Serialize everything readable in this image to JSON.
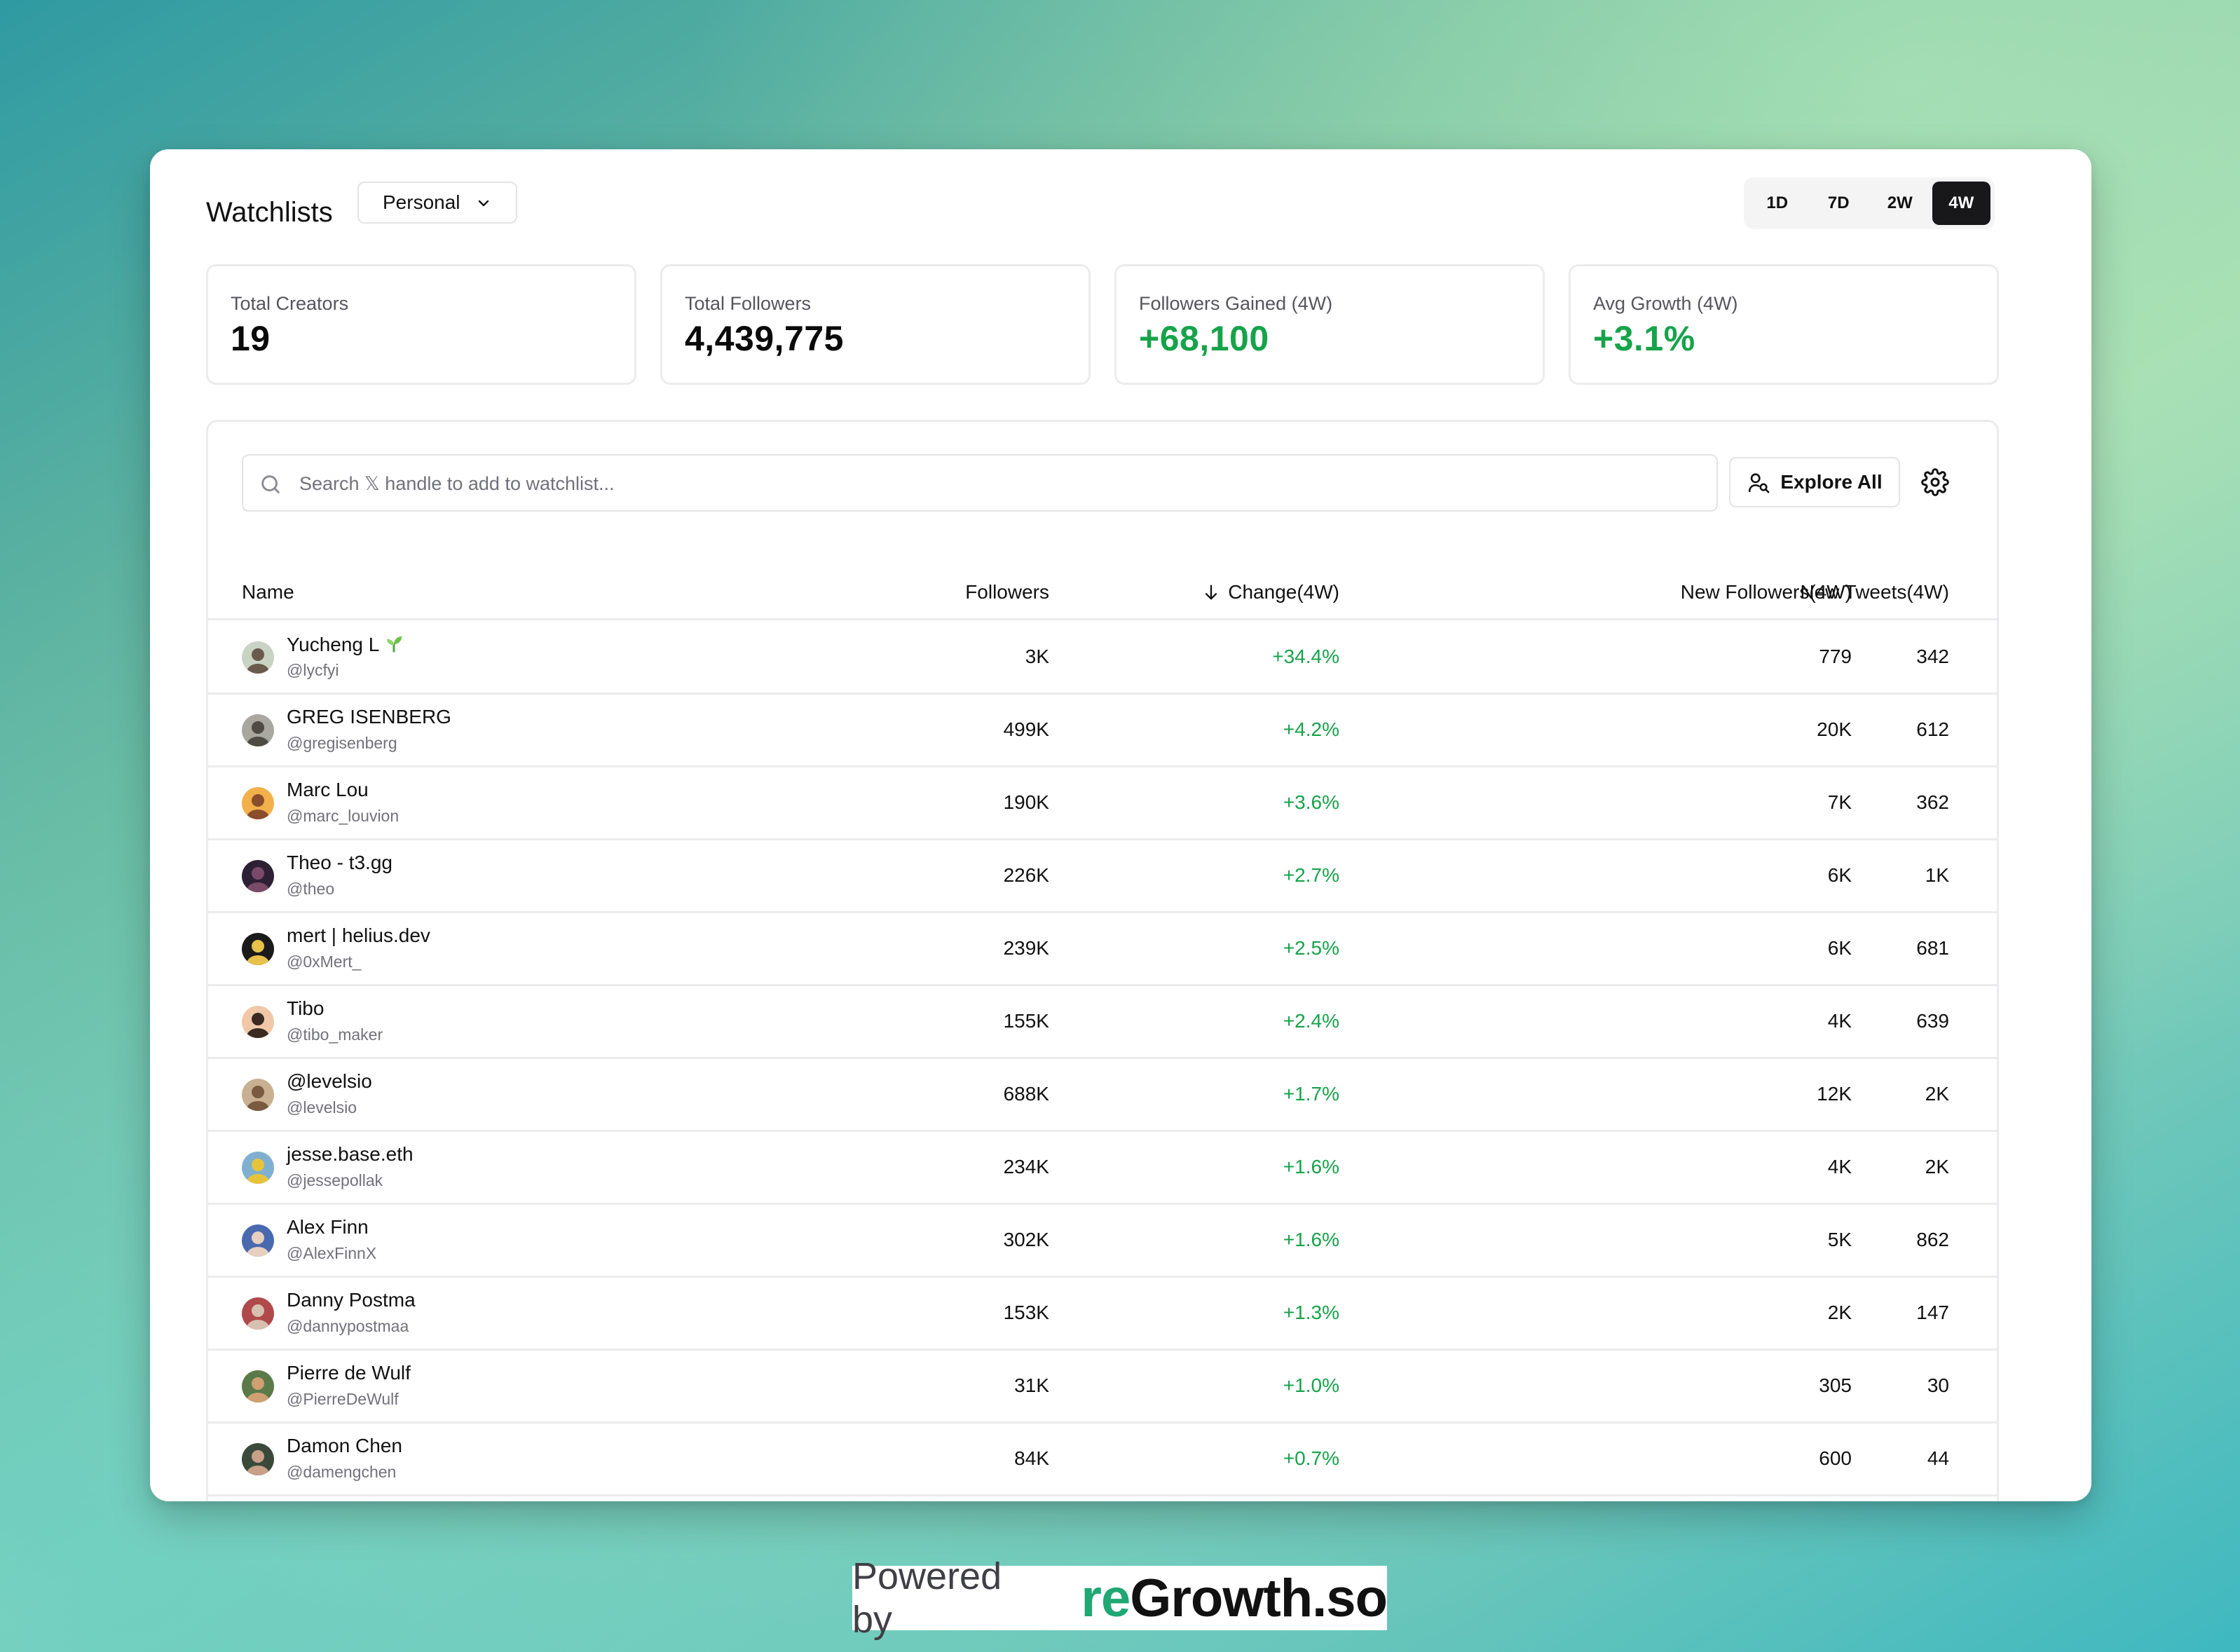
{
  "header": {
    "title": "Watchlists",
    "list_select": "Personal"
  },
  "ranges": [
    {
      "label": "1D",
      "active": false
    },
    {
      "label": "7D",
      "active": false
    },
    {
      "label": "2W",
      "active": false
    },
    {
      "label": "4W",
      "active": true
    }
  ],
  "stats": [
    {
      "label": "Total Creators",
      "value": "19"
    },
    {
      "label": "Total Followers",
      "value": "4,439,775"
    },
    {
      "label": "Followers Gained (4W)",
      "value": "+68,100"
    },
    {
      "label": "Avg Growth (4W)",
      "value": "+3.1%"
    }
  ],
  "search": {
    "placeholder": "Search 𝕏 handle to add to watchlist...",
    "value": ""
  },
  "explore_label": "Explore All",
  "table": {
    "columns": {
      "name": "Name",
      "followers": "Followers",
      "change": "Change(4W)",
      "new_followers": "New Followers(4W)",
      "new_tweets": "New Tweets(4W)"
    },
    "rows": [
      {
        "name": "Yucheng L",
        "handle": "@lycfyi",
        "followers": "3K",
        "change": "+34.4%",
        "new_followers": "779",
        "new_tweets": "342"
      },
      {
        "name": "GREG ISENBERG",
        "handle": "@gregisenberg",
        "followers": "499K",
        "change": "+4.2%",
        "new_followers": "20K",
        "new_tweets": "612"
      },
      {
        "name": "Marc Lou",
        "handle": "@marc_louvion",
        "followers": "190K",
        "change": "+3.6%",
        "new_followers": "7K",
        "new_tweets": "362"
      },
      {
        "name": "Theo - t3.gg",
        "handle": "@theo",
        "followers": "226K",
        "change": "+2.7%",
        "new_followers": "6K",
        "new_tweets": "1K"
      },
      {
        "name": "mert | helius.dev",
        "handle": "@0xMert_",
        "followers": "239K",
        "change": "+2.5%",
        "new_followers": "6K",
        "new_tweets": "681"
      },
      {
        "name": "Tibo",
        "handle": "@tibo_maker",
        "followers": "155K",
        "change": "+2.4%",
        "new_followers": "4K",
        "new_tweets": "639"
      },
      {
        "name": "@levelsio",
        "handle": "@levelsio",
        "followers": "688K",
        "change": "+1.7%",
        "new_followers": "12K",
        "new_tweets": "2K"
      },
      {
        "name": "jesse.base.eth",
        "handle": "@jessepollak",
        "followers": "234K",
        "change": "+1.6%",
        "new_followers": "4K",
        "new_tweets": "2K"
      },
      {
        "name": "Alex Finn",
        "handle": "@AlexFinnX",
        "followers": "302K",
        "change": "+1.6%",
        "new_followers": "5K",
        "new_tweets": "862"
      },
      {
        "name": "Danny Postma",
        "handle": "@dannypostmaa",
        "followers": "153K",
        "change": "+1.3%",
        "new_followers": "2K",
        "new_tweets": "147"
      },
      {
        "name": "Pierre de Wulf",
        "handle": "@PierreDeWulf",
        "followers": "31K",
        "change": "+1.0%",
        "new_followers": "305",
        "new_tweets": "30"
      },
      {
        "name": "Damon Chen",
        "handle": "@damengchen",
        "followers": "84K",
        "change": "+0.7%",
        "new_followers": "600",
        "new_tweets": "44"
      }
    ]
  },
  "footer": {
    "powered_by": "Powered by",
    "brand_prefix": "re",
    "brand_rest": "Growth.so"
  },
  "colors": {
    "positive": "#16a34a",
    "active_range": "#18181b",
    "brand_accent": "#1fa774"
  }
}
